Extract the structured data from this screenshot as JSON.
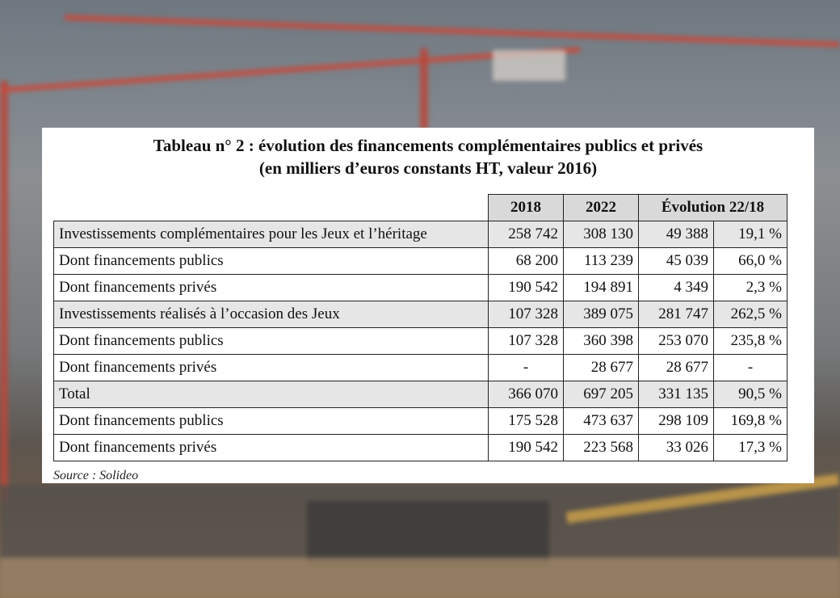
{
  "title_line1": "Tableau n° 2 : évolution des financements complémentaires publics et privés",
  "title_line2": "(en milliers d’euros constants HT, valeur 2016)",
  "headers": {
    "y2018": "2018",
    "y2022": "2022",
    "evolution": "Évolution 22/18"
  },
  "rows": [
    {
      "label": "Investissements complémentaires pour les Jeux et l’héritage",
      "v2018": "258 742",
      "v2022": "308 130",
      "evo": "49 388",
      "pct": "19,1 %"
    },
    {
      "label": "Dont financements publics",
      "v2018": "68 200",
      "v2022": "113 239",
      "evo": "45 039",
      "pct": "66,0 %"
    },
    {
      "label": "Dont financements privés",
      "v2018": "190 542",
      "v2022": "194 891",
      "evo": "4 349",
      "pct": "2,3 %"
    },
    {
      "label": "Investissements réalisés à l’occasion des Jeux",
      "v2018": "107 328",
      "v2022": "389 075",
      "evo": "281 747",
      "pct": "262,5 %"
    },
    {
      "label": "Dont financements publics",
      "v2018": "107 328",
      "v2022": "360 398",
      "evo": "253 070",
      "pct": "235,8 %"
    },
    {
      "label": "Dont financements privés",
      "v2018": "-",
      "v2022": "28 677",
      "evo": "28 677",
      "pct": "-"
    },
    {
      "label": "Total",
      "v2018": "366 070",
      "v2022": "697 205",
      "evo": "331 135",
      "pct": "90,5 %"
    },
    {
      "label": "Dont financements publics",
      "v2018": "175 528",
      "v2022": "473 637",
      "evo": "298 109",
      "pct": "169,8 %"
    },
    {
      "label": "Dont financements privés",
      "v2018": "190 542",
      "v2022": "223 568",
      "evo": "33 026",
      "pct": "17,3 %"
    }
  ],
  "source": "Source : Solideo"
}
